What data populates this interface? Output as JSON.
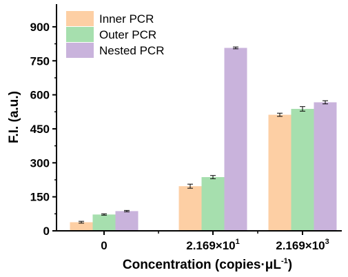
{
  "chart_data": {
    "type": "bar",
    "categories": [
      {
        "base": "0",
        "sup": ""
      },
      {
        "base": "2.169×10",
        "sup": "1"
      },
      {
        "base": "2.169×10",
        "sup": "3"
      }
    ],
    "series": [
      {
        "name": "Inner PCR",
        "color": "#fdcfa4",
        "values": [
          38,
          197,
          512
        ],
        "errors": [
          4,
          9,
          7
        ]
      },
      {
        "name": "Outer PCR",
        "color": "#a6dfae",
        "values": [
          72,
          237,
          538
        ],
        "errors": [
          3,
          7,
          10
        ]
      },
      {
        "name": "Nested PCR",
        "color": "#c9b3dc",
        "values": [
          87,
          807,
          567
        ],
        "errors": [
          3,
          4,
          7
        ]
      }
    ],
    "xlabel": {
      "base": "Concentration (copies·μL",
      "sup": "-1",
      "close": ")"
    },
    "ylabel": "F.I. (a.u.)",
    "ylim": [
      0,
      1000
    ],
    "yticks": [
      "0",
      "150",
      "300",
      "450",
      "600",
      "750",
      "900"
    ],
    "legend_position": "top-left",
    "grid": false
  }
}
